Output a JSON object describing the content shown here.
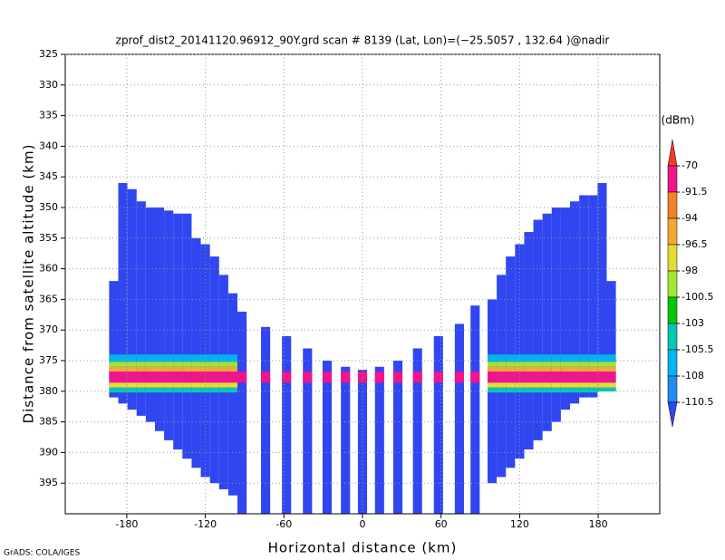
{
  "chart_data": {
    "type": "profile",
    "title": "zprof_dist2_20141120.96912_90Y.grd  scan # 8139  (Lat, Lon)=(−25.5057 , 132.64 )@nadir",
    "xlabel": "Horizontal distance (km)",
    "ylabel": "Distance from satellite altitude (km)",
    "footer": "GrADS: COLA/IGES",
    "xlim": [
      -227,
      227
    ],
    "ylim": [
      325,
      400
    ],
    "xticks": [
      -180,
      -120,
      -60,
      0,
      60,
      120,
      180
    ],
    "yticks": [
      325,
      330,
      335,
      340,
      345,
      350,
      355,
      360,
      365,
      370,
      375,
      380,
      385,
      390,
      395
    ],
    "grid": true,
    "colorbar": {
      "label": "(dBm)",
      "levels": [
        -70,
        -91.5,
        -94,
        -96.5,
        -98,
        -100.5,
        -103,
        -105.5,
        -108,
        -110.5
      ],
      "colors": [
        "#f03c28",
        "#f0148c",
        "#f08228",
        "#f0aa32",
        "#e6dc32",
        "#a0e632",
        "#00c800",
        "#00c8b4",
        "#00b4f0",
        "#1e8cf0",
        "#3046f0"
      ]
    },
    "columns": {
      "width": 7,
      "value": -115,
      "x": [
        -190,
        -183,
        -176,
        -169,
        -162,
        -155,
        -148,
        -141,
        -134,
        -127,
        -120,
        -113,
        -106,
        -99,
        -92,
        -74,
        -58,
        -42,
        -27,
        -13,
        0,
        13,
        27,
        42,
        58,
        74,
        86,
        99,
        106,
        113,
        120,
        127,
        134,
        141,
        148,
        155,
        162,
        169,
        176,
        183,
        190
      ],
      "top": [
        362,
        346,
        347,
        349,
        350,
        350,
        350.5,
        351,
        351,
        355,
        356,
        358,
        361,
        364,
        367,
        369.5,
        371,
        373,
        375,
        376,
        376.5,
        376,
        375,
        373,
        371,
        369,
        366,
        365,
        361,
        358,
        356,
        354,
        352,
        351,
        350,
        350,
        349,
        348,
        348,
        346,
        362
      ],
      "bottom": [
        381,
        382,
        383,
        384,
        385,
        386.5,
        388,
        389.5,
        391,
        392.5,
        394,
        395,
        396,
        397,
        400,
        400,
        400,
        400,
        400,
        400,
        400,
        400,
        400,
        400,
        400,
        400,
        400,
        395,
        394,
        392.5,
        391,
        389.5,
        388,
        386.5,
        385,
        383,
        382,
        381,
        381,
        380,
        380
      ]
    },
    "layers": [
      {
        "xrange": [
          -195,
          -95
        ],
        "top": 374,
        "bottom": 375.2,
        "value": -106
      },
      {
        "xrange": [
          95,
          195
        ],
        "top": 374,
        "bottom": 375.2,
        "value": -106
      },
      {
        "xrange": [
          -195,
          -95
        ],
        "top": 375.2,
        "bottom": 376,
        "value": -99
      },
      {
        "xrange": [
          95,
          195
        ],
        "top": 375.2,
        "bottom": 376,
        "value": -99
      },
      {
        "xrange": [
          -195,
          -95
        ],
        "top": 376,
        "bottom": 376.8,
        "value": -95
      },
      {
        "xrange": [
          95,
          195
        ],
        "top": 376,
        "bottom": 376.8,
        "value": -95
      },
      {
        "xrange": [
          -195,
          195
        ],
        "top": 376.8,
        "bottom": 378.6,
        "value": -80
      },
      {
        "xrange": [
          -195,
          -95
        ],
        "top": 378.6,
        "bottom": 379.4,
        "value": -97
      },
      {
        "xrange": [
          95,
          195
        ],
        "top": 378.6,
        "bottom": 379.4,
        "value": -97
      },
      {
        "xrange": [
          -195,
          -95
        ],
        "top": 379.4,
        "bottom": 380.2,
        "value": -104
      },
      {
        "xrange": [
          95,
          195
        ],
        "top": 379.4,
        "bottom": 380.2,
        "value": -104
      }
    ]
  }
}
